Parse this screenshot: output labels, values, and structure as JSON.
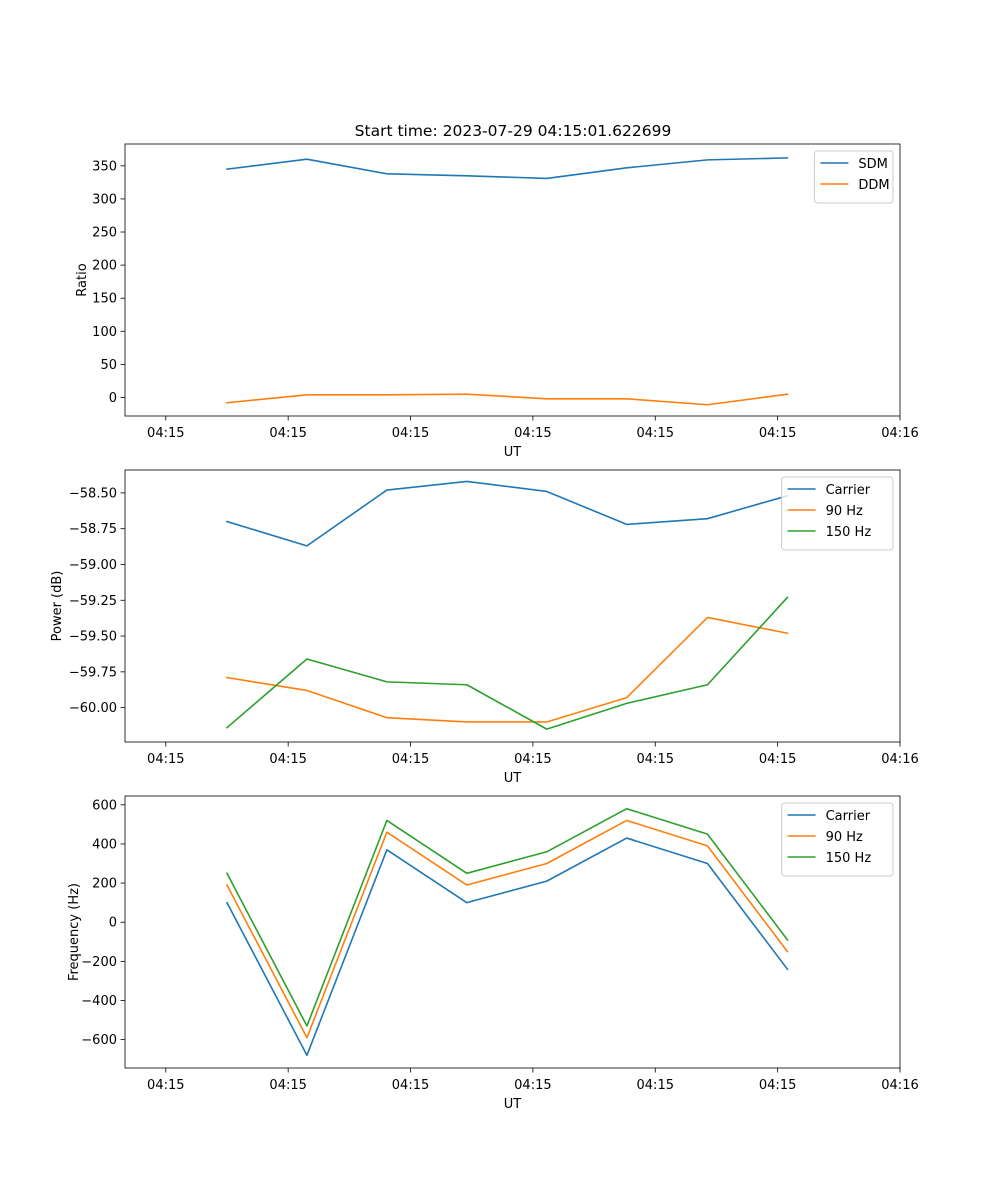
{
  "figure_title": "Start time: 2023-07-29 04:15:01.622699",
  "colors": {
    "blue": "#1f77b4",
    "orange": "#ff7f0e",
    "green": "#2ca02c"
  },
  "chart_data": [
    {
      "type": "line",
      "title": "Start time: 2023-07-29 04:15:01.622699",
      "xlabel": "UT",
      "ylabel": "Ratio",
      "xlim": [
        -0.5,
        9.0
      ],
      "ylim": [
        -28,
        383
      ],
      "x_ticks": [
        0,
        1.5,
        3,
        4.5,
        6,
        7.5,
        9
      ],
      "x_tick_labels": [
        "04:15",
        "04:15",
        "04:15",
        "04:15",
        "04:15",
        "04:15",
        "04:16"
      ],
      "y_ticks": [
        0,
        50,
        100,
        150,
        200,
        250,
        300,
        350
      ],
      "y_tick_labels": [
        "0",
        "50",
        "100",
        "150",
        "200",
        "250",
        "300",
        "350"
      ],
      "legend_position": "top-right",
      "x": [
        0.75,
        1.73,
        2.71,
        3.69,
        4.67,
        5.65,
        6.64,
        7.62
      ],
      "series": [
        {
          "name": "SDM",
          "color": "#1f77b4",
          "values": [
            345,
            360,
            338,
            335,
            331,
            347,
            359,
            362
          ]
        },
        {
          "name": "DDM",
          "color": "#ff7f0e",
          "values": [
            -8,
            4,
            4,
            5,
            -2,
            -2,
            -11,
            5
          ]
        }
      ]
    },
    {
      "type": "line",
      "title": "",
      "xlabel": "UT",
      "ylabel": "Power (dB)",
      "xlim": [
        -0.5,
        9.0
      ],
      "ylim": [
        -60.24,
        -58.34
      ],
      "x_ticks": [
        0,
        1.5,
        3,
        4.5,
        6,
        7.5,
        9
      ],
      "x_tick_labels": [
        "04:15",
        "04:15",
        "04:15",
        "04:15",
        "04:15",
        "04:15",
        "04:16"
      ],
      "y_ticks": [
        -60.0,
        -59.75,
        -59.5,
        -59.25,
        -59.0,
        -58.75,
        -58.5
      ],
      "y_tick_labels": [
        "−60.00",
        "−59.75",
        "−59.50",
        "−59.25",
        "−59.00",
        "−58.75",
        "−58.50"
      ],
      "legend_position": "top-right",
      "x": [
        0.75,
        1.73,
        2.71,
        3.69,
        4.67,
        5.65,
        6.64,
        7.62
      ],
      "series": [
        {
          "name": "Carrier",
          "color": "#1f77b4",
          "values": [
            -58.7,
            -58.87,
            -58.48,
            -58.42,
            -58.49,
            -58.72,
            -58.68,
            -58.52
          ]
        },
        {
          "name": "90 Hz",
          "color": "#ff7f0e",
          "values": [
            -59.79,
            -59.88,
            -60.07,
            -60.1,
            -60.1,
            -59.93,
            -59.37,
            -59.48
          ]
        },
        {
          "name": "150 Hz",
          "color": "#2ca02c",
          "values": [
            -60.14,
            -59.66,
            -59.82,
            -59.84,
            -60.15,
            -59.97,
            -59.84,
            -59.23
          ]
        }
      ]
    },
    {
      "type": "line",
      "title": "",
      "xlabel": "UT",
      "ylabel": "Frequency (Hz)",
      "xlim": [
        -0.5,
        9.0
      ],
      "ylim": [
        -745,
        645
      ],
      "x_ticks": [
        0,
        1.5,
        3,
        4.5,
        6,
        7.5,
        9
      ],
      "x_tick_labels": [
        "04:15",
        "04:15",
        "04:15",
        "04:15",
        "04:15",
        "04:15",
        "04:16"
      ],
      "y_ticks": [
        -600,
        -400,
        -200,
        0,
        200,
        400,
        600
      ],
      "y_tick_labels": [
        "−600",
        "−400",
        "−200",
        "0",
        "200",
        "400",
        "600"
      ],
      "legend_position": "top-right",
      "x": [
        0.75,
        1.73,
        2.71,
        3.69,
        4.67,
        5.65,
        6.64,
        7.62
      ],
      "series": [
        {
          "name": "Carrier",
          "color": "#1f77b4",
          "values": [
            100,
            -680,
            370,
            100,
            210,
            430,
            300,
            -240
          ]
        },
        {
          "name": "90 Hz",
          "color": "#ff7f0e",
          "values": [
            190,
            -590,
            460,
            190,
            300,
            520,
            390,
            -150
          ]
        },
        {
          "name": "150 Hz",
          "color": "#2ca02c",
          "values": [
            250,
            -530,
            520,
            250,
            360,
            580,
            450,
            -90
          ]
        }
      ]
    }
  ]
}
